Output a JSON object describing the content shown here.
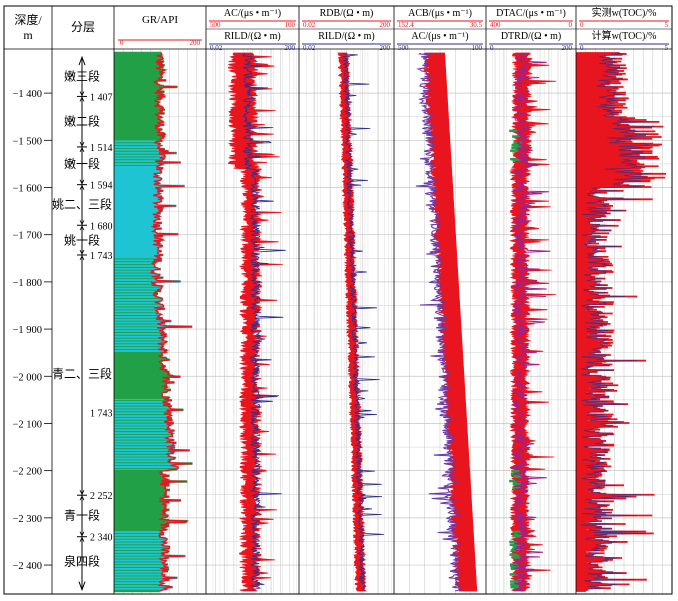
{
  "chart_data": {
    "type": "line",
    "depth_header": [
      "深度/",
      "m"
    ],
    "depth_range": [
      1315,
      2455
    ],
    "depth_ticks": [
      "1 400",
      "1 500",
      "1 600",
      "1 700",
      "1 800",
      "1 900",
      "2 000",
      "2 100",
      "2 200",
      "2 300",
      "2 400"
    ],
    "strat_title": "分层",
    "formations": [
      {
        "name": "嫩三段",
        "top": 1328,
        "bottom": 1407
      },
      {
        "name": "嫩二段",
        "top": 1407,
        "bottom": 1514
      },
      {
        "name": "嫩一段",
        "top": 1514,
        "bottom": 1594
      },
      {
        "name": "姚二、三段",
        "top": 1594,
        "bottom": 1680
      },
      {
        "name": "姚一段",
        "top": 1680,
        "bottom": 1743
      },
      {
        "name": "青二、三段",
        "top": 1743,
        "bottom": 2252
      },
      {
        "name": "青一段",
        "top": 2252,
        "bottom": 2340
      },
      {
        "name": "泉四段",
        "top": 2340,
        "bottom": 2455
      }
    ],
    "boundary_labels": [
      {
        "text": "1 407",
        "depth": 1407
      },
      {
        "text": "1 514",
        "depth": 1514
      },
      {
        "text": "1 594",
        "depth": 1594
      },
      {
        "text": "1 680",
        "depth": 1680
      },
      {
        "text": "1 743",
        "depth": 1743
      },
      {
        "text": "1 743",
        "depth": 2077
      },
      {
        "text": "2 252",
        "depth": 2252
      },
      {
        "text": "2 340",
        "depth": 2340
      }
    ],
    "tracks": [
      {
        "id": "gr",
        "curves": [
          {
            "name": "GR/API",
            "min": "0",
            "max": "200",
            "color": "#e8141e"
          }
        ]
      },
      {
        "id": "ac",
        "curves": [
          {
            "name": "AC/(μs • m⁻¹)",
            "min": "500",
            "max": "100",
            "color": "#e8141e"
          },
          {
            "name": "RILD/(Ω • m)",
            "min": "0.02",
            "max": "200",
            "color": "#2b2f8f"
          }
        ]
      },
      {
        "id": "rdb",
        "curves": [
          {
            "name": "RDB/(Ω • m)",
            "min": "0.02",
            "max": "200",
            "color": "#e8141e"
          },
          {
            "name": "RILD/(Ω • m)",
            "min": "0.02",
            "max": "200",
            "color": "#2b2f8f"
          }
        ]
      },
      {
        "id": "acb",
        "curves": [
          {
            "name": "ACB/(μs • m⁻¹)",
            "min": "152.4",
            "max": "30.5",
            "color": "#e8141e"
          },
          {
            "name": "AC/(μs • m⁻¹)",
            "min": "500",
            "max": "100",
            "color": "#2b2f8f"
          }
        ]
      },
      {
        "id": "dtac",
        "curves": [
          {
            "name": "DTAC/(μs • m⁻¹)",
            "min": "400",
            "max": "0",
            "color": "#e8141e"
          },
          {
            "name": "DTRD/(Ω • m)",
            "min": "0",
            "max": "200",
            "color": "#2b2f8f"
          }
        ]
      },
      {
        "id": "toc",
        "curves": [
          {
            "name": "实测w(TOC)/%",
            "min": "0",
            "max": "5",
            "color": "#e8141e"
          },
          {
            "name": "计算w(TOC)/%",
            "min": "0",
            "max": "5",
            "color": "#2b2f8f"
          }
        ]
      }
    ],
    "colors": {
      "red": "#e8141e",
      "blue": "#2b2f8f",
      "purple": "#a0208c",
      "cyan": "#1fc4d2",
      "green": "#22a047",
      "grid": "#c4c4c4"
    }
  }
}
